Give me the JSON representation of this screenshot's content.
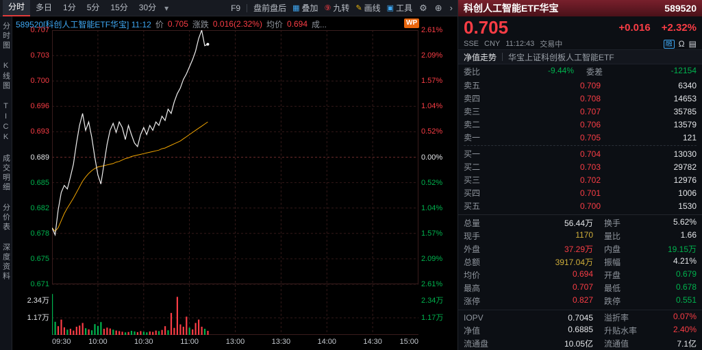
{
  "toolbar": {
    "tabs": [
      {
        "label": "分时",
        "active": true
      },
      {
        "label": "多日",
        "active": false
      },
      {
        "label": "1分",
        "active": false
      },
      {
        "label": "5分",
        "active": false
      },
      {
        "label": "15分",
        "active": false
      },
      {
        "label": "30分",
        "active": false
      }
    ],
    "dropdown_icon": "▾",
    "right_items": [
      {
        "label": "F9"
      },
      {
        "label": "盘前盘后"
      },
      {
        "icon": "▦",
        "icon_color": "#3fa9f5",
        "label": "叠加"
      },
      {
        "icon": "⑨",
        "icon_color": "#fa3d45",
        "label": "九转"
      },
      {
        "icon": "✎",
        "icon_color": "#e8b40e",
        "label": "画线"
      },
      {
        "icon": "▣",
        "icon_color": "#3fa9f5",
        "label": "工具"
      }
    ],
    "action_icons": [
      {
        "name": "settings-gear-icon",
        "glyph": "⚙"
      },
      {
        "name": "add-panel-icon",
        "glyph": "⊕"
      },
      {
        "name": "expand-chevron-icon",
        "glyph": "›"
      }
    ]
  },
  "sidebar": {
    "items": [
      "分时图",
      "K线图",
      "TICK",
      "成交明细",
      "分价表",
      "深度资料"
    ]
  },
  "chart_header": {
    "title": "589520[科创人工智能ETF华宝] 11:12",
    "price_label": "价",
    "price": "0.705",
    "change_label": "涨跌",
    "change": "0.016(2.32%)",
    "avg_label": "均价",
    "avg": "0.694",
    "truncated": "成...",
    "wp_badge": "WP"
  },
  "chart_data": {
    "type": "line",
    "title": "分时走势 589520 科创人工智能ETF华宝",
    "prev_close": 0.689,
    "ylim": [
      0.671,
      0.707
    ],
    "total_minutes": 240,
    "minutes_per_point": 2,
    "y_axis_left": [
      "0.707",
      "0.703",
      "0.700",
      "0.696",
      "0.693",
      "0.689",
      "0.685",
      "0.682",
      "0.678",
      "0.675",
      "0.671"
    ],
    "y_axis_right": [
      "2.61%",
      "2.09%",
      "1.57%",
      "1.04%",
      "0.52%",
      "0.00%",
      "0.52%",
      "1.04%",
      "1.57%",
      "2.09%",
      "2.61%"
    ],
    "x_labels": [
      {
        "t": "09:30",
        "m": 0
      },
      {
        "t": "10:00",
        "m": 30
      },
      {
        "t": "10:30",
        "m": 60
      },
      {
        "t": "11:00",
        "m": 90
      },
      {
        "t": "13:00",
        "m": 120
      },
      {
        "t": "13:30",
        "m": 150
      },
      {
        "t": "14:00",
        "m": 180
      },
      {
        "t": "14:30",
        "m": 210
      },
      {
        "t": "15:00",
        "m": 240
      }
    ],
    "volume_axis": [
      {
        "label": "2.34万",
        "v": 23400
      },
      {
        "label": "1.17万",
        "v": 11700
      }
    ],
    "price_line": [
      0.679,
      0.678,
      0.6815,
      0.684,
      0.685,
      0.6845,
      0.6862,
      0.688,
      0.691,
      0.6935,
      0.6952,
      0.6928,
      0.694,
      0.6918,
      0.689,
      0.6865,
      0.6852,
      0.688,
      0.6908,
      0.6928,
      0.6938,
      0.6925,
      0.694,
      0.6932,
      0.6915,
      0.6935,
      0.6922,
      0.691,
      0.6905,
      0.6922,
      0.6932,
      0.6922,
      0.6935,
      0.6928,
      0.694,
      0.6935,
      0.6948,
      0.6942,
      0.6958,
      0.6952,
      0.6968,
      0.698,
      0.6988,
      0.7,
      0.7008,
      0.7018,
      0.7028,
      0.704,
      0.7058,
      0.707,
      0.7048,
      0.705
    ],
    "avg_line": [
      0.679,
      0.6785,
      0.679,
      0.68,
      0.681,
      0.6818,
      0.6825,
      0.6832,
      0.684,
      0.6848,
      0.6856,
      0.6862,
      0.6867,
      0.6871,
      0.6874,
      0.6876,
      0.6877,
      0.6878,
      0.6879,
      0.688,
      0.6881,
      0.6883,
      0.6884,
      0.6886,
      0.6888,
      0.6889,
      0.6891,
      0.6892,
      0.6893,
      0.6894,
      0.6895,
      0.6896,
      0.6897,
      0.6898,
      0.6899,
      0.69,
      0.6902,
      0.6903,
      0.6905,
      0.6907,
      0.6909,
      0.6911,
      0.6913,
      0.6916,
      0.6919,
      0.6922,
      0.6925,
      0.6928,
      0.6931,
      0.6934,
      0.6937,
      0.694
    ],
    "volume": [
      [
        28000,
        -1
      ],
      [
        9000,
        -1
      ],
      [
        6000,
        1
      ],
      [
        10500,
        1
      ],
      [
        5200,
        1
      ],
      [
        3600,
        -1
      ],
      [
        4200,
        1
      ],
      [
        3000,
        1
      ],
      [
        5600,
        1
      ],
      [
        6400,
        1
      ],
      [
        8200,
        1
      ],
      [
        4600,
        -1
      ],
      [
        3800,
        1
      ],
      [
        3200,
        -1
      ],
      [
        7400,
        -1
      ],
      [
        6200,
        -1
      ],
      [
        8800,
        -1
      ],
      [
        4200,
        1
      ],
      [
        5000,
        1
      ],
      [
        4400,
        1
      ],
      [
        3600,
        -1
      ],
      [
        3000,
        1
      ],
      [
        2600,
        1
      ],
      [
        2200,
        1
      ],
      [
        1800,
        -1
      ],
      [
        2000,
        1
      ],
      [
        2800,
        -1
      ],
      [
        2400,
        -1
      ],
      [
        1900,
        1
      ],
      [
        2600,
        1
      ],
      [
        2200,
        -1
      ],
      [
        1800,
        -1
      ],
      [
        2400,
        1
      ],
      [
        2100,
        1
      ],
      [
        3000,
        1
      ],
      [
        2600,
        -1
      ],
      [
        3400,
        1
      ],
      [
        6000,
        1
      ],
      [
        3200,
        -1
      ],
      [
        15000,
        1
      ],
      [
        4800,
        1
      ],
      [
        26000,
        1
      ],
      [
        7200,
        1
      ],
      [
        5600,
        1
      ],
      [
        12500,
        1
      ],
      [
        5000,
        -1
      ],
      [
        3800,
        1
      ],
      [
        8200,
        1
      ],
      [
        10500,
        1
      ],
      [
        5600,
        1
      ],
      [
        4200,
        -1
      ],
      [
        2800,
        1
      ]
    ]
  },
  "panel": {
    "title": "科创人工智能ETF华宝",
    "code": "589520",
    "price": "0.705",
    "change": "+0.016",
    "change_pct": "+2.32%",
    "exchange": "SSE",
    "currency": "CNY",
    "time": "11:12:43",
    "status": "交易中",
    "icons": [
      {
        "name": "margin-trading-badge",
        "glyph": "融",
        "style": "badge"
      },
      {
        "name": "alert-bell-icon",
        "glyph": "Ω"
      },
      {
        "name": "board-detail-icon",
        "glyph": "▤"
      }
    ],
    "nav": [
      "净值走势",
      "华宝上证科创板人工智能ETF"
    ],
    "weibi_label": "委比",
    "weibi": "-9.44%",
    "weicha_label": "委差",
    "weicha": "-12154",
    "order_book": {
      "asks": [
        [
          "卖五",
          "0.709",
          "6340",
          "red"
        ],
        [
          "卖四",
          "0.708",
          "14653",
          "red"
        ],
        [
          "卖三",
          "0.707",
          "35785",
          "red"
        ],
        [
          "卖二",
          "0.706",
          "13579",
          "red"
        ],
        [
          "卖一",
          "0.705",
          "121",
          "red"
        ]
      ],
      "bids": [
        [
          "买一",
          "0.704",
          "13030",
          "red"
        ],
        [
          "买二",
          "0.703",
          "29782",
          "red"
        ],
        [
          "买三",
          "0.702",
          "12976",
          "red"
        ],
        [
          "买四",
          "0.701",
          "1006",
          "red"
        ],
        [
          "买五",
          "0.700",
          "1530",
          "red"
        ]
      ]
    },
    "stats": [
      [
        [
          "总量",
          "56.44万",
          "white"
        ],
        [
          "换手",
          "5.62%",
          "white"
        ]
      ],
      [
        [
          "现手",
          "1170",
          "yellow"
        ],
        [
          "量比",
          "1.66",
          "white"
        ]
      ],
      [
        [
          "外盘",
          "37.29万",
          "red"
        ],
        [
          "内盘",
          "19.15万",
          "green"
        ]
      ],
      [
        [
          "总额",
          "3917.04万",
          "yellow"
        ],
        [
          "振幅",
          "4.21%",
          "white"
        ]
      ],
      [
        [
          "均价",
          "0.694",
          "red"
        ],
        [
          "开盘",
          "0.679",
          "green"
        ]
      ],
      [
        [
          "最高",
          "0.707",
          "red"
        ],
        [
          "最低",
          "0.678",
          "green"
        ]
      ],
      [
        [
          "涨停",
          "0.827",
          "red"
        ],
        [
          "跌停",
          "0.551",
          "green"
        ]
      ],
      [
        [
          "IOPV",
          "0.7045",
          "white"
        ],
        [
          "溢折率",
          "0.07%",
          "red"
        ]
      ],
      [
        [
          "净值",
          "0.6885",
          "white"
        ],
        [
          "升贴水率",
          "2.40%",
          "red"
        ]
      ],
      [
        [
          "流通盘",
          "10.05亿",
          "white"
        ],
        [
          "流通值",
          "7.1亿",
          "white"
        ]
      ]
    ]
  }
}
